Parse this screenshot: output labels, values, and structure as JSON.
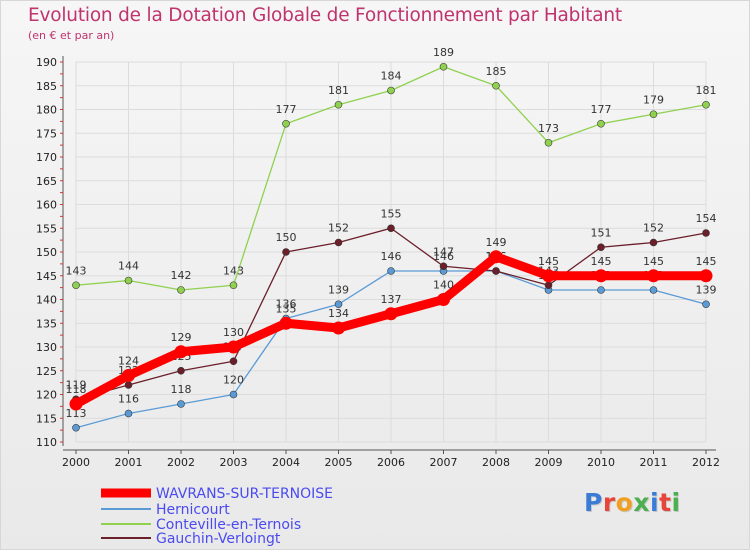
{
  "title": "Evolution de la Dotation Globale de Fonctionnement par Habitant",
  "subtitle": "(en € et par an)",
  "logo": {
    "text": "Proxiti",
    "colors": [
      "#3a7bd5",
      "#e8443a",
      "#f0a020",
      "#4caf50",
      "#3a7bd5",
      "#e8443a",
      "#4caf50"
    ]
  },
  "chart_data": {
    "type": "line",
    "categories": [
      "2000",
      "2001",
      "2002",
      "2003",
      "2004",
      "2005",
      "2006",
      "2007",
      "2008",
      "2009",
      "2010",
      "2011",
      "2012"
    ],
    "ylim": [
      110,
      190
    ],
    "yticks": [
      "110",
      "115",
      "120",
      "125",
      "130",
      "135",
      "140",
      "145",
      "150",
      "155",
      "160",
      "165",
      "170",
      "175",
      "180",
      "185",
      "190"
    ],
    "grid": true,
    "legend_position": "bottom-left",
    "series": [
      {
        "name": "Hernicourt",
        "color": "#5b9bd5",
        "values": [
          113,
          116,
          118,
          120,
          136,
          139,
          146,
          146,
          146,
          142,
          142,
          142,
          139
        ]
      },
      {
        "name": "Conteville-en-Ternois",
        "color": "#8fd14f",
        "values": [
          143,
          144,
          142,
          143,
          177,
          181,
          184,
          189,
          185,
          173,
          177,
          179,
          181
        ]
      },
      {
        "name": "Gauchin-Verloingt",
        "color": "#6b1f2a",
        "values": [
          119,
          122,
          125,
          127,
          150,
          152,
          155,
          147,
          146,
          143,
          151,
          152,
          154
        ]
      },
      {
        "name": "WAVRANS-SUR-TERNOISE",
        "color": "#ff0000",
        "values": [
          118,
          124,
          129,
          130,
          135,
          134,
          137,
          140,
          149,
          145,
          145,
          145,
          145
        ]
      }
    ],
    "legend_order": [
      "WAVRANS-SUR-TERNOISE",
      "Hernicourt",
      "Conteville-en-Ternois",
      "Gauchin-Verloingt"
    ],
    "legend_colors": [
      "#4a4af0",
      "#4a4af0",
      "#4a4af0",
      "#4a4af0"
    ]
  }
}
